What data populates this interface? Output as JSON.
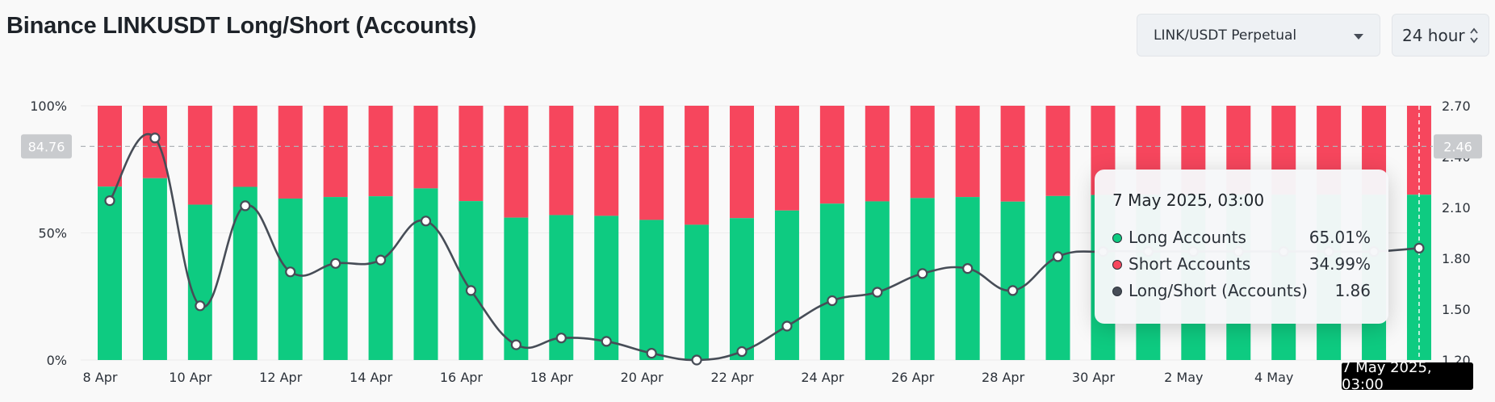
{
  "header": {
    "title": "Binance LINKUSDT Long/Short (Accounts)",
    "pair_select": "LINK/USDT Perpetual",
    "period_select": "24 hour"
  },
  "colors": {
    "long": "#0ecb81",
    "short": "#f6465d",
    "ratio_line": "#474d57",
    "background": "#f9f9f9"
  },
  "chart_data": {
    "type": "bar",
    "stacked": true,
    "title": "Binance LINKUSDT Long/Short (Accounts)",
    "categories": [
      "8 Apr",
      "9 Apr",
      "10 Apr",
      "11 Apr",
      "12 Apr",
      "13 Apr",
      "14 Apr",
      "15 Apr",
      "16 Apr",
      "17 Apr",
      "18 Apr",
      "19 Apr",
      "20 Apr",
      "21 Apr",
      "22 Apr",
      "23 Apr",
      "24 Apr",
      "25 Apr",
      "26 Apr",
      "27 Apr",
      "28 Apr",
      "29 Apr",
      "30 Apr",
      "1 May",
      "2 May",
      "3 May",
      "4 May",
      "5 May",
      "6 May",
      "7 May"
    ],
    "x_tick_labels": [
      "8 Apr",
      "10 Apr",
      "12 Apr",
      "14 Apr",
      "16 Apr",
      "18 Apr",
      "20 Apr",
      "22 Apr",
      "24 Apr",
      "26 Apr",
      "28 Apr",
      "30 Apr",
      "2 May",
      "4 May"
    ],
    "y_left": {
      "ticks": [
        "100%",
        "50%",
        "0%"
      ],
      "range": [
        0,
        100
      ],
      "unit": "%"
    },
    "y_right": {
      "ticks": [
        "2.70",
        "2.40",
        "2.10",
        "1.80",
        "1.50",
        "1.20"
      ],
      "range": [
        1.2,
        2.7
      ]
    },
    "series": [
      {
        "name": "Long Accounts",
        "axis": "left",
        "kind": "bar",
        "values": [
          68.2,
          71.5,
          61.1,
          68.1,
          63.5,
          64.1,
          64.4,
          67.5,
          62.5,
          56.0,
          57.0,
          56.7,
          55.1,
          53.2,
          55.8,
          58.8,
          61.5,
          62.4,
          63.7,
          64.1,
          62.3,
          64.5,
          64.9,
          65.0,
          65.0,
          65.0,
          65.0,
          65.0,
          65.0,
          65.01
        ]
      },
      {
        "name": "Short Accounts",
        "axis": "left",
        "kind": "bar",
        "values": [
          31.8,
          28.5,
          38.9,
          31.9,
          36.5,
          35.9,
          35.6,
          32.5,
          37.5,
          44.0,
          43.0,
          43.3,
          44.9,
          46.8,
          44.2,
          41.2,
          38.5,
          37.6,
          36.3,
          35.9,
          37.7,
          35.5,
          35.1,
          35.0,
          35.0,
          35.0,
          35.0,
          35.0,
          35.0,
          34.99
        ]
      },
      {
        "name": "Long/Short (Accounts)",
        "axis": "right",
        "kind": "line",
        "values": [
          2.14,
          2.51,
          1.52,
          2.11,
          1.72,
          1.77,
          1.79,
          2.02,
          1.61,
          1.29,
          1.33,
          1.31,
          1.24,
          1.2,
          1.25,
          1.4,
          1.55,
          1.6,
          1.71,
          1.74,
          1.61,
          1.81,
          1.84,
          1.84,
          1.84,
          1.84,
          1.84,
          1.84,
          1.84,
          1.86
        ]
      }
    ],
    "crosshair": {
      "left_value_label": "84.76",
      "right_value_label": "2.46",
      "x_label": "7 May 2025, 03:00"
    },
    "legend": "tooltip"
  },
  "tooltip": {
    "date": "7 May 2025, 03:00",
    "rows": [
      {
        "label": "Long Accounts",
        "value": "65.01%",
        "color": "#0ecb81"
      },
      {
        "label": "Short Accounts",
        "value": "34.99%",
        "color": "#f6465d"
      },
      {
        "label": "Long/Short (Accounts)",
        "value": "1.86",
        "color": "#474d57"
      }
    ]
  }
}
